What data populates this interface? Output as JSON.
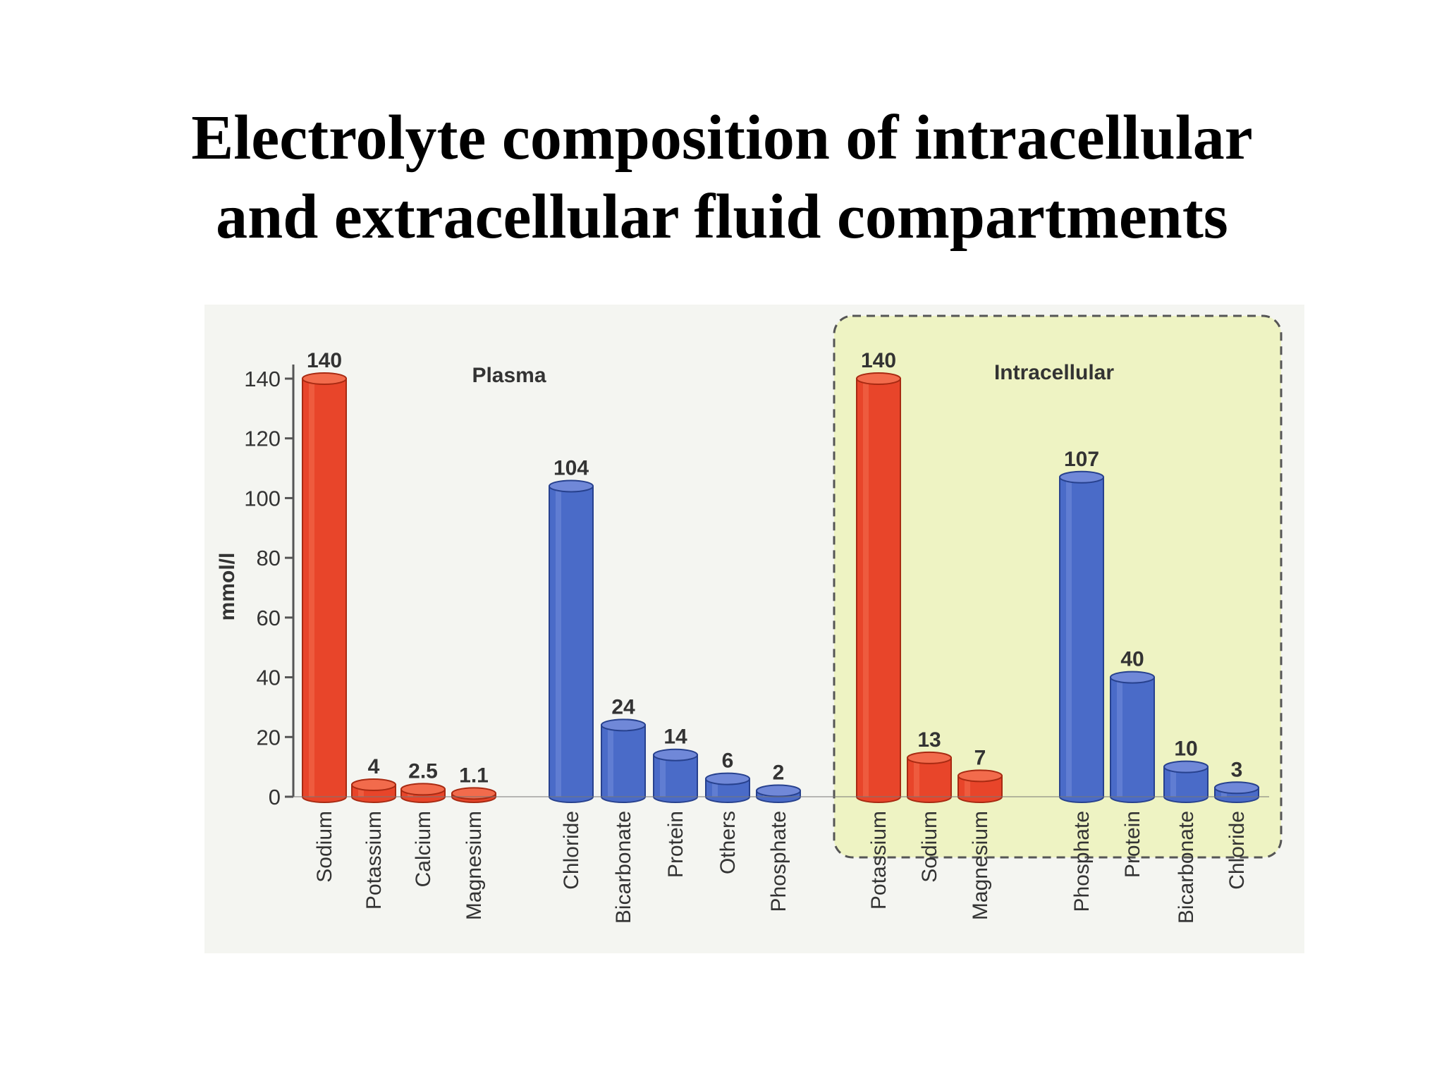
{
  "slide": {
    "title_line1": "Electrolyte composition of intracellular",
    "title_line2": "and extracellular fluid compartments"
  },
  "chart_data": {
    "type": "bar",
    "ylabel": "mmol/l",
    "ylim": [
      0,
      140
    ],
    "yticks": [
      0,
      20,
      40,
      60,
      80,
      100,
      120,
      140
    ],
    "grid": false,
    "groups": [
      {
        "label": "Plasma",
        "boxed": false,
        "categories": [
          "Sodium",
          "Potassium",
          "Calcium",
          "Magnesium",
          "Chloride",
          "Bicarbonate",
          "Protein",
          "Others",
          "Phosphate"
        ],
        "values": [
          140,
          4,
          2.5,
          1.1,
          104,
          24,
          14,
          6,
          2
        ],
        "value_labels": [
          "140",
          "4",
          "2.5",
          "1.1",
          "104",
          "24",
          "14",
          "6",
          "2"
        ],
        "kinds": [
          "cation",
          "cation",
          "cation",
          "cation",
          "anion",
          "anion",
          "anion",
          "anion",
          "anion"
        ]
      },
      {
        "label": "Intracellular",
        "boxed": true,
        "categories": [
          "Potassium",
          "Sodium",
          "Magnesium",
          "Phosphate",
          "Protein",
          "Bicarbonate",
          "Chloride"
        ],
        "values": [
          140,
          13,
          7,
          107,
          40,
          10,
          3
        ],
        "value_labels": [
          "140",
          "13",
          "7",
          "107",
          "40",
          "10",
          "3"
        ],
        "kinds": [
          "cation",
          "cation",
          "cation",
          "anion",
          "anion",
          "anion",
          "anion"
        ]
      }
    ],
    "colors": {
      "cation": "#e8452a",
      "cation_top": "#f26b4c",
      "cation_edge": "#a82a12",
      "anion": "#4a6bc8",
      "anion_top": "#7088d8",
      "anion_edge": "#27418e",
      "box_fill": "#eef3c3",
      "box_edge": "#555555",
      "scan_bg": "#f4f5f1"
    }
  }
}
